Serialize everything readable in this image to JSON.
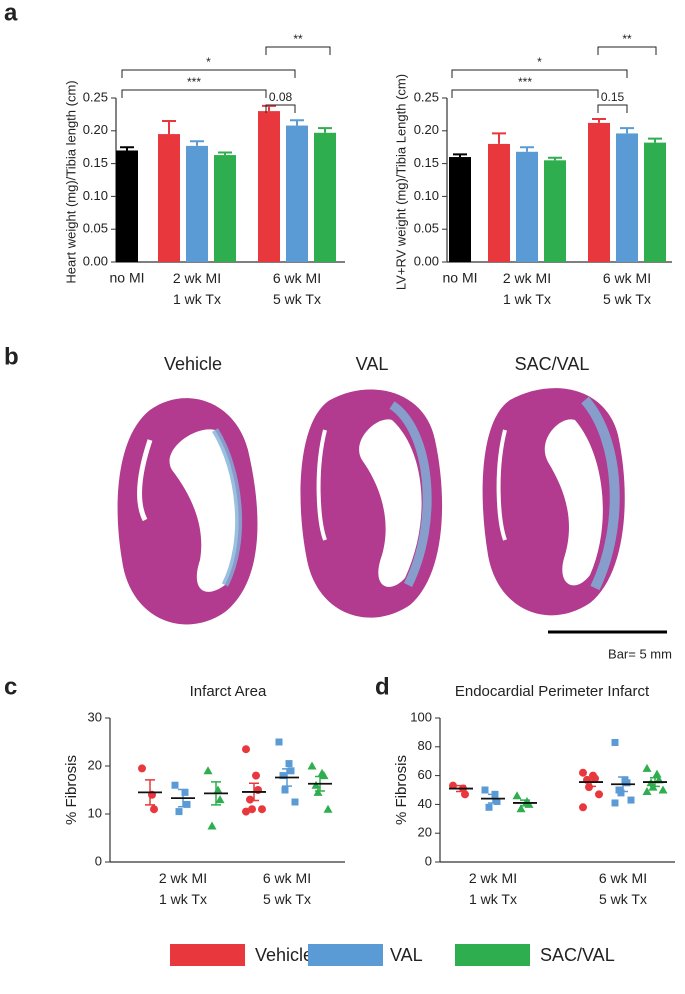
{
  "panels": {
    "a": "a",
    "b": "b",
    "c": "c",
    "d": "d"
  },
  "image": {
    "labels": [
      "Vehicle",
      "VAL",
      "SAC/VAL"
    ],
    "scale_bar": "Bar= 5 mm"
  },
  "chart_data": [
    {
      "type": "bar",
      "ylabel": "Heart weight (mg)/Tibia length (cm)",
      "categories": [
        "no MI",
        "2 wk MI\n1 wk Tx",
        "6 wk MI\n5 wk Tx"
      ],
      "series": [
        {
          "color": "#000000",
          "values": [
            0.17,
            null,
            null
          ],
          "errors": [
            0.005,
            null,
            null
          ]
        },
        {
          "name": "Vehicle",
          "color": "#e8383d",
          "values": [
            null,
            0.195,
            0.23
          ],
          "errors": [
            null,
            0.02,
            0.008
          ]
        },
        {
          "name": "VAL",
          "color": "#5b9bd5",
          "values": [
            null,
            0.177,
            0.208
          ],
          "errors": [
            null,
            0.007,
            0.008
          ]
        },
        {
          "name": "SAC/VAL",
          "color": "#2eae4f",
          "values": [
            null,
            0.163,
            0.197
          ],
          "errors": [
            null,
            0.004,
            0.007
          ]
        }
      ],
      "ylim": [
        0,
        0.25
      ],
      "yticks": [
        {
          "value": 0,
          "label": "0.00"
        },
        0.05,
        {
          "value": 0.1,
          "label": "0.10"
        },
        0.15,
        {
          "value": 0.2,
          "label": "0.20"
        },
        0.25
      ],
      "annotations": [
        "*",
        "***",
        "**",
        "0.08"
      ]
    },
    {
      "type": "bar",
      "ylabel": "LV+RV weight (mg)/Tibia Length (cm)",
      "categories": [
        "no MI",
        "2 wk MI\n1 wk Tx",
        "6 wk MI\n5 wk Tx"
      ],
      "series": [
        {
          "color": "#000000",
          "values": [
            0.16,
            null,
            null
          ],
          "errors": [
            0.004,
            null,
            null
          ]
        },
        {
          "color": "#e8383d",
          "values": [
            null,
            0.18,
            0.212
          ],
          "errors": [
            null,
            0.016,
            0.006
          ]
        },
        {
          "color": "#5b9bd5",
          "values": [
            null,
            0.168,
            0.196
          ],
          "errors": [
            null,
            0.007,
            0.008
          ]
        },
        {
          "color": "#2eae4f",
          "values": [
            null,
            0.155,
            0.182
          ],
          "errors": [
            null,
            0.004,
            0.006
          ]
        }
      ],
      "ylim": [
        0,
        0.25
      ],
      "yticks": [
        {
          "value": 0,
          "label": "0.00"
        },
        0.05,
        {
          "value": 0.1,
          "label": "0.10"
        },
        0.15,
        {
          "value": 0.2,
          "label": "0.20"
        },
        0.25
      ],
      "annotations": [
        "*",
        "***",
        "**",
        "0.15"
      ]
    },
    {
      "type": "dot",
      "title": "Infarct Area",
      "ylabel": "% Fibrosis",
      "categories": [
        "2 wk MI\n1 wk Tx",
        "6 wk MI\n5 wk Tx"
      ],
      "series": [
        {
          "color": "#e8383d",
          "marker": "circle",
          "points": [
            [
              19.5,
              14,
              11
            ],
            [
              23.5,
              18,
              15,
              13,
              11,
              11,
              10.5
            ]
          ],
          "mean": [
            14.5,
            14.6
          ],
          "sem": [
            2.6,
            1.8
          ]
        },
        {
          "color": "#5b9bd5",
          "marker": "square",
          "points": [
            [
              16,
              14.5,
              12,
              10.5
            ],
            [
              25,
              20.5,
              19,
              18,
              15,
              12.5
            ]
          ],
          "mean": [
            13.3,
            17.6
          ],
          "sem": [
            1.8,
            1.8
          ]
        },
        {
          "color": "#2eae4f",
          "marker": "triangle",
          "points": [
            [
              19,
              15,
              13,
              7.5
            ],
            [
              20,
              18.5,
              18,
              16,
              14.5,
              11
            ]
          ],
          "mean": [
            14.3,
            16.3
          ],
          "sem": [
            2.4,
            1.5
          ]
        }
      ],
      "ylim": [
        0,
        30
      ],
      "yticks": [
        0,
        10,
        20,
        30
      ]
    },
    {
      "type": "dot",
      "title": "Endocardial Perimeter Infarct",
      "ylabel": "% Fibrosis",
      "categories": [
        "2 wk MI\n1 wk Tx",
        "6 wk MI\n5 wk Tx"
      ],
      "series": [
        {
          "color": "#e8383d",
          "marker": "circle",
          "points": [
            [
              53,
              51,
              47
            ],
            [
              62,
              60,
              58,
              57,
              52,
              47,
              38
            ]
          ],
          "mean": [
            51,
            55.5
          ],
          "sem": [
            2,
            3
          ]
        },
        {
          "color": "#5b9bd5",
          "marker": "square",
          "points": [
            [
              50,
              47,
              42,
              38
            ],
            [
              83,
              57,
              55,
              50,
              48,
              43,
              41
            ]
          ],
          "mean": [
            44,
            54
          ],
          "sem": [
            3,
            5
          ]
        },
        {
          "color": "#2eae4f",
          "marker": "triangle",
          "points": [
            [
              46,
              42,
              40,
              37
            ],
            [
              65,
              61,
              57,
              55,
              52,
              50,
              49
            ]
          ],
          "mean": [
            41,
            55.5
          ],
          "sem": [
            2,
            3
          ]
        }
      ],
      "ylim": [
        0,
        100
      ],
      "yticks": [
        0,
        20,
        40,
        60,
        80,
        100
      ]
    }
  ]
}
